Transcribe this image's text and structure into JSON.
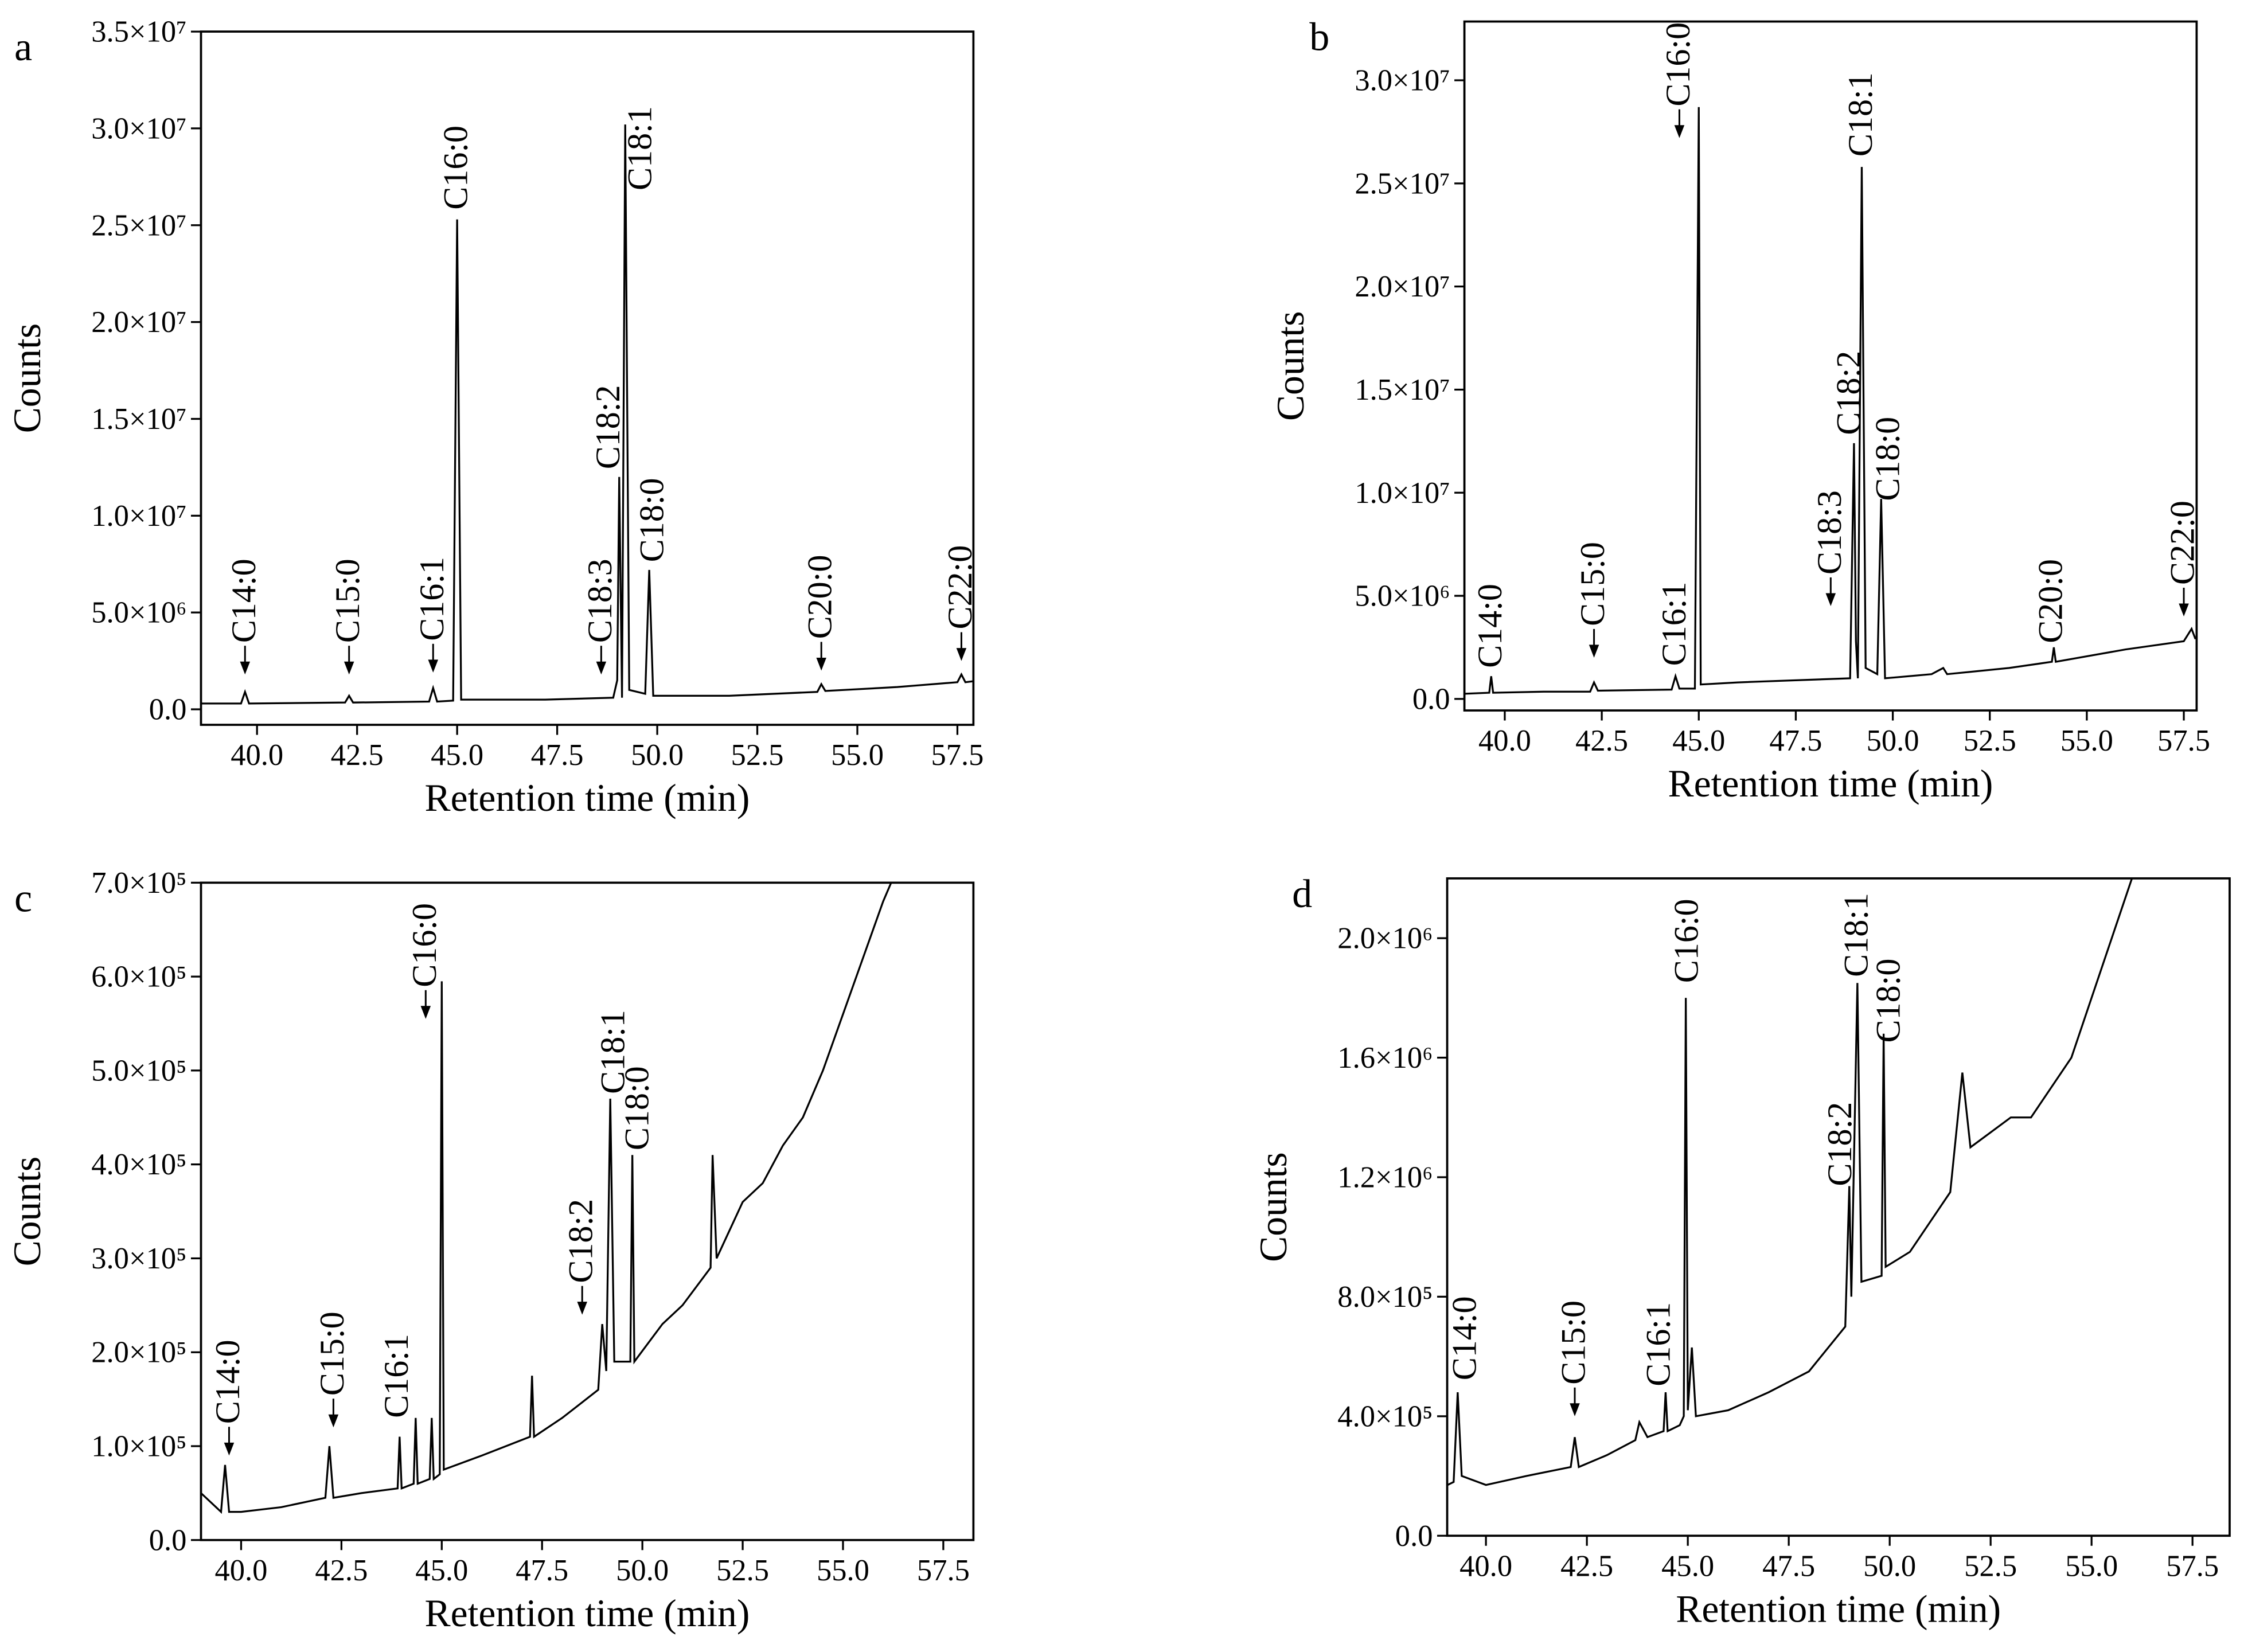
{
  "chart_data": [
    {
      "type": "line",
      "panel_label": "a",
      "xlabel": "Retention time (min)",
      "ylabel": "Counts",
      "color": "#000000",
      "xlim": [
        38.6,
        57.9
      ],
      "ylim": [
        -800000,
        35000000
      ],
      "xticks": [
        {
          "value": 40,
          "label": "40.0"
        },
        {
          "value": 42.5,
          "label": "42.5"
        },
        {
          "value": 45,
          "label": "45.0"
        },
        {
          "value": 47.5,
          "label": "47.5"
        },
        {
          "value": 50,
          "label": "50.0"
        },
        {
          "value": 52.5,
          "label": "52.5"
        },
        {
          "value": 55,
          "label": "55.0"
        },
        {
          "value": 57.5,
          "label": "57.5"
        }
      ],
      "yticks": [
        {
          "value": 0,
          "label": "0.0"
        },
        {
          "value": 5000000,
          "label": "5.0×10⁶"
        },
        {
          "value": 10000000,
          "label": "1.0×10⁷"
        },
        {
          "value": 15000000,
          "label": "1.5×10⁷"
        },
        {
          "value": 20000000,
          "label": "2.0×10⁷"
        },
        {
          "value": 25000000,
          "label": "2.5×10⁷"
        },
        {
          "value": 30000000,
          "label": "3.0×10⁷"
        },
        {
          "value": 35000000,
          "label": "3.5×10⁷"
        }
      ],
      "x": [
        38.6,
        39.6,
        39.7,
        39.8,
        42.2,
        42.3,
        42.4,
        44.3,
        44.4,
        44.5,
        44.9,
        45.0,
        45.1,
        47.2,
        48.9,
        49.0,
        49.05,
        49.12,
        49.2,
        49.3,
        49.7,
        49.8,
        49.9,
        51.8,
        54.0,
        54.1,
        54.2,
        56.0,
        57.5,
        57.6,
        57.7,
        57.9
      ],
      "values": [
        300000,
        300000,
        900000,
        300000,
        350000,
        700000,
        350000,
        400000,
        1100000,
        400000,
        450000,
        25300000,
        500000,
        500000,
        600000,
        1500000,
        12000000,
        600000,
        30200000,
        1000000,
        800000,
        7200000,
        700000,
        700000,
        900000,
        1300000,
        950000,
        1150000,
        1400000,
        1800000,
        1400000,
        1450000
      ],
      "annotations": [
        {
          "text": "C14:0",
          "x": 39.7,
          "y": 1800000,
          "arrow": true
        },
        {
          "text": "C15:0",
          "x": 42.3,
          "y": 1800000,
          "arrow": true
        },
        {
          "text": "C16:1",
          "x": 44.4,
          "y": 1900000,
          "arrow": true
        },
        {
          "text": "C16:0",
          "x": 45.0,
          "y": 25800000,
          "arrow": false
        },
        {
          "text": "C18:3",
          "x": 48.6,
          "y": 1800000,
          "arrow": true
        },
        {
          "text": "C18:2",
          "x": 48.8,
          "y": 12400000,
          "arrow": false
        },
        {
          "text": "C18:1",
          "x": 49.6,
          "y": 26800000,
          "arrow": false
        },
        {
          "text": "C18:0",
          "x": 49.9,
          "y": 7600000,
          "arrow": false
        },
        {
          "text": "C20:0",
          "x": 54.1,
          "y": 2000000,
          "arrow": true
        },
        {
          "text": "C22:0",
          "x": 57.6,
          "y": 2500000,
          "arrow": true
        }
      ]
    },
    {
      "type": "line",
      "panel_label": "b",
      "xlabel": "Retention time (min)",
      "ylabel": "Counts",
      "color": "#000000",
      "xlim": [
        38.96,
        57.83
      ],
      "ylim": [
        -560000,
        32850000
      ],
      "xticks": [
        {
          "value": 40,
          "label": "40.0"
        },
        {
          "value": 42.5,
          "label": "42.5"
        },
        {
          "value": 45,
          "label": "45.0"
        },
        {
          "value": 47.5,
          "label": "47.5"
        },
        {
          "value": 50,
          "label": "50.0"
        },
        {
          "value": 52.5,
          "label": "52.5"
        },
        {
          "value": 55,
          "label": "55.0"
        },
        {
          "value": 57.5,
          "label": "57.5"
        }
      ],
      "yticks": [
        {
          "value": 0,
          "label": "0.0"
        },
        {
          "value": 5000000,
          "label": "5.0×10⁶"
        },
        {
          "value": 10000000,
          "label": "1.0×10⁷"
        },
        {
          "value": 15000000,
          "label": "1.5×10⁷"
        },
        {
          "value": 20000000,
          "label": "2.0×10⁷"
        },
        {
          "value": 25000000,
          "label": "2.5×10⁷"
        },
        {
          "value": 30000000,
          "label": "3.0×10⁷"
        }
      ],
      "x": [
        38.96,
        39.6,
        39.65,
        39.7,
        41.0,
        42.2,
        42.3,
        42.4,
        44.3,
        44.4,
        44.5,
        44.9,
        45.0,
        45.05,
        46.0,
        48.9,
        49.0,
        49.05,
        49.1,
        49.2,
        49.3,
        49.6,
        49.7,
        49.8,
        51.0,
        51.3,
        51.4,
        53.0,
        54.1,
        54.15,
        54.2,
        56.0,
        57.5,
        57.7,
        57.8
      ],
      "values": [
        250000,
        300000,
        1100000,
        300000,
        350000,
        350000,
        800000,
        400000,
        450000,
        1100000,
        500000,
        500000,
        28700000,
        700000,
        800000,
        1000000,
        12400000,
        2800000,
        1000000,
        25800000,
        1500000,
        1200000,
        9700000,
        1000000,
        1200000,
        1500000,
        1200000,
        1500000,
        1800000,
        2500000,
        1800000,
        2400000,
        2800000,
        3400000,
        2900000
      ],
      "annotations": [
        {
          "text": "C14:0",
          "x": 39.65,
          "y": 1500000,
          "arrow": false
        },
        {
          "text": "C15:0",
          "x": 42.3,
          "y": 2000000,
          "arrow": true
        },
        {
          "text": "C16:1",
          "x": 44.4,
          "y": 1600000,
          "arrow": false
        },
        {
          "text": "C16:0",
          "x": 44.5,
          "y": 27200000,
          "arrow": true
        },
        {
          "text": "C18:3",
          "x": 48.4,
          "y": 4500000,
          "arrow": true
        },
        {
          "text": "C18:2",
          "x": 48.9,
          "y": 12800000,
          "arrow": false
        },
        {
          "text": "C18:1",
          "x": 49.2,
          "y": 26300000,
          "arrow": false
        },
        {
          "text": "C18:0",
          "x": 49.9,
          "y": 9600000,
          "arrow": false
        },
        {
          "text": "C20:0",
          "x": 54.1,
          "y": 2700000,
          "arrow": false
        },
        {
          "text": "C22:0",
          "x": 57.5,
          "y": 4000000,
          "arrow": true
        }
      ]
    },
    {
      "type": "line",
      "panel_label": "c",
      "xlabel": "Retention time (min)",
      "ylabel": "Counts",
      "color": "#000000",
      "xlim": [
        39.0,
        58.25
      ],
      "ylim": [
        0,
        700000
      ],
      "xticks": [
        {
          "value": 40,
          "label": "40.0"
        },
        {
          "value": 42.5,
          "label": "42.5"
        },
        {
          "value": 45,
          "label": "45.0"
        },
        {
          "value": 47.5,
          "label": "47.5"
        },
        {
          "value": 50,
          "label": "50.0"
        },
        {
          "value": 52.5,
          "label": "52.5"
        },
        {
          "value": 55,
          "label": "55.0"
        },
        {
          "value": 57.5,
          "label": "57.5"
        }
      ],
      "yticks": [
        {
          "value": 0,
          "label": "0.0"
        },
        {
          "value": 100000,
          "label": "1.0×10⁵"
        },
        {
          "value": 200000,
          "label": "2.0×10⁵"
        },
        {
          "value": 300000,
          "label": "3.0×10⁵"
        },
        {
          "value": 400000,
          "label": "4.0×10⁵"
        },
        {
          "value": 500000,
          "label": "5.0×10⁵"
        },
        {
          "value": 600000,
          "label": "6.0×10⁵"
        },
        {
          "value": 700000,
          "label": "7.0×10⁵"
        }
      ],
      "x": [
        39.0,
        39.5,
        39.6,
        39.7,
        40.0,
        41.0,
        42.1,
        42.2,
        42.3,
        43.0,
        43.9,
        43.95,
        44.0,
        44.3,
        44.35,
        44.4,
        44.7,
        44.75,
        44.8,
        44.95,
        45.0,
        45.05,
        46.0,
        47.2,
        47.25,
        47.3,
        48.0,
        48.9,
        49.0,
        49.1,
        49.2,
        49.3,
        49.7,
        49.75,
        49.8,
        50.5,
        51.0,
        51.7,
        51.75,
        51.85,
        52.5,
        53.0,
        53.5,
        54.0,
        54.5,
        55.0,
        55.5,
        56.0,
        56.3
      ],
      "values": [
        50000,
        30000,
        80000,
        30000,
        30000,
        35000,
        45000,
        100000,
        45000,
        50000,
        55000,
        110000,
        55000,
        60000,
        130000,
        60000,
        65000,
        130000,
        65000,
        70000,
        595000,
        75000,
        90000,
        110000,
        175000,
        110000,
        130000,
        160000,
        230000,
        180000,
        470000,
        190000,
        190000,
        410000,
        190000,
        230000,
        250000,
        290000,
        410000,
        300000,
        360000,
        380000,
        420000,
        450000,
        500000,
        560000,
        620000,
        680000,
        710000
      ],
      "annotations": [
        {
          "text": "C14:0",
          "x": 39.7,
          "y": 90000,
          "arrow": true
        },
        {
          "text": "C15:0",
          "x": 42.3,
          "y": 120000,
          "arrow": true
        },
        {
          "text": "C16:1",
          "x": 43.9,
          "y": 130000,
          "arrow": false
        },
        {
          "text": "C16:0",
          "x": 44.6,
          "y": 555000,
          "arrow": true
        },
        {
          "text": "C18:2",
          "x": 48.5,
          "y": 240000,
          "arrow": true
        },
        {
          "text": "C18:1",
          "x": 49.3,
          "y": 475000,
          "arrow": false
        },
        {
          "text": "C18:0",
          "x": 49.9,
          "y": 415000,
          "arrow": false
        }
      ]
    },
    {
      "type": "line",
      "panel_label": "d",
      "xlabel": "Retention time (min)",
      "ylabel": "Counts",
      "color": "#000000",
      "xlim": [
        39.04,
        58.42
      ],
      "ylim": [
        0,
        2200000
      ],
      "xticks": [
        {
          "value": 40,
          "label": "40.0"
        },
        {
          "value": 42.5,
          "label": "42.5"
        },
        {
          "value": 45,
          "label": "45.0"
        },
        {
          "value": 47.5,
          "label": "47.5"
        },
        {
          "value": 50,
          "label": "50.0"
        },
        {
          "value": 52.5,
          "label": "52.5"
        },
        {
          "value": 55,
          "label": "55.0"
        },
        {
          "value": 57.5,
          "label": "57.5"
        }
      ],
      "yticks": [
        {
          "value": 0,
          "label": "0.0"
        },
        {
          "value": 400000,
          "label": "4.0×10⁵"
        },
        {
          "value": 800000,
          "label": "8.0×10⁵"
        },
        {
          "value": 1200000,
          "label": "1.2×10⁶"
        },
        {
          "value": 1600000,
          "label": "1.6×10⁶"
        },
        {
          "value": 2000000,
          "label": "2.0×10⁶"
        }
      ],
      "x": [
        39.05,
        39.2,
        39.3,
        39.4,
        40.0,
        41.0,
        42.1,
        42.2,
        42.3,
        43.0,
        43.7,
        43.8,
        44.0,
        44.4,
        44.45,
        44.5,
        44.8,
        44.9,
        44.95,
        45.0,
        45.1,
        45.2,
        46.0,
        47.0,
        48.0,
        48.9,
        49.0,
        49.05,
        49.2,
        49.3,
        49.8,
        49.85,
        49.9,
        50.5,
        51.0,
        51.5,
        51.8,
        52.0,
        52.5,
        53.0,
        53.5,
        54.0,
        54.5,
        55.0,
        55.5,
        56.0,
        56.5
      ],
      "values": [
        170000,
        180000,
        480000,
        200000,
        170000,
        200000,
        230000,
        330000,
        230000,
        270000,
        320000,
        380000,
        330000,
        350000,
        480000,
        350000,
        370000,
        400000,
        1800000,
        420000,
        630000,
        400000,
        420000,
        480000,
        550000,
        700000,
        1170000,
        800000,
        1850000,
        850000,
        870000,
        1680000,
        900000,
        950000,
        1050000,
        1150000,
        1550000,
        1300000,
        1350000,
        1400000,
        1400000,
        1500000,
        1600000,
        1800000,
        2000000,
        2200000,
        2250000
      ],
      "annotations": [
        {
          "text": "C14:0",
          "x": 39.5,
          "y": 520000,
          "arrow": false
        },
        {
          "text": "C15:0",
          "x": 42.2,
          "y": 400000,
          "arrow": true
        },
        {
          "text": "C16:1",
          "x": 44.3,
          "y": 500000,
          "arrow": false
        },
        {
          "text": "C16:0",
          "x": 45.0,
          "y": 1850000,
          "arrow": false
        },
        {
          "text": "C18:2",
          "x": 48.8,
          "y": 1170000,
          "arrow": false
        },
        {
          "text": "C18:1",
          "x": 49.2,
          "y": 1870000,
          "arrow": false
        },
        {
          "text": "C18:0",
          "x": 50.0,
          "y": 1650000,
          "arrow": false
        }
      ]
    }
  ]
}
